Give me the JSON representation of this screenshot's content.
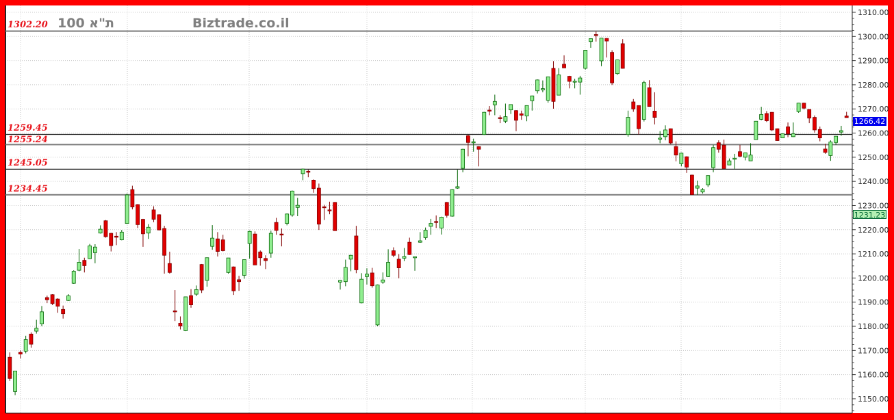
{
  "header": {
    "index_name": "100 ת\"א",
    "watermark": "Biztrade.co.il"
  },
  "colors": {
    "frame": "#ff0000",
    "up_fill": "#90ee90",
    "up_stroke": "#006400",
    "down_fill": "#e00000",
    "down_stroke": "#800000",
    "level_label": "#e8161e",
    "last_price_badge": "#0000ee",
    "secondary_badge": "#b4f0b4"
  },
  "chart_data": {
    "type": "candlestick",
    "ylim": [
      1145,
      1312
    ],
    "y_ticks": [
      "1310.00",
      "1300.00",
      "1290.00",
      "1280.00",
      "1270.00",
      "1260.00",
      "1250.00",
      "1240.00",
      "1230.00",
      "1220.00",
      "1210.00",
      "1200.00",
      "1190.00",
      "1180.00",
      "1170.00",
      "1160.00",
      "1150.00"
    ],
    "y_axis_position": "right",
    "grid": true,
    "levels": [
      {
        "label": "1302.20",
        "value": 1302.2
      },
      {
        "label": "1259.45",
        "value": 1259.45
      },
      {
        "label": "1255.24",
        "value": 1255.24
      },
      {
        "label": "1245.05",
        "value": 1245.05
      },
      {
        "label": "1234.45",
        "value": 1234.45
      }
    ],
    "last_price": "1266.42",
    "secondary_marker": {
      "label": "1231.23",
      "value": 1231.23
    },
    "ohlc": [
      [
        1167.2,
        1169.2,
        1157.4,
        1158.4
      ],
      [
        1153,
        1161.5,
        1151.5,
        1161.5
      ],
      [
        1169.2,
        1170,
        1166.7,
        1168.5
      ],
      [
        1169.7,
        1176.1,
        1168.8,
        1174.5
      ],
      [
        1176.8,
        1177.5,
        1171.1,
        1172.6
      ],
      [
        1178.0,
        1182.7,
        1177,
        1179.2
      ],
      [
        1181.0,
        1188.4,
        1180,
        1186.0
      ],
      [
        1191.9,
        1192.7,
        1189.6,
        1191.0
      ],
      [
        1193.1,
        1193.3,
        1188.8,
        1189.4
      ],
      [
        1191.3,
        1191.6,
        1185.6,
        1188.3
      ],
      [
        1187,
        1188.6,
        1183.2,
        1185.2
      ],
      [
        1190.7,
        1193.3,
        1190.5,
        1192.6
      ],
      [
        1197.8,
        1203.2,
        1197.6,
        1202.8
      ],
      [
        1203.2,
        1212,
        1202.8,
        1206.5
      ],
      [
        1207.3,
        1208.4,
        1202.3,
        1205.1
      ],
      [
        1208,
        1214.1,
        1207.8,
        1213.3
      ],
      [
        1210.5,
        1214,
        1206.1,
        1212.8
      ],
      [
        1218.6,
        1221.8,
        1218.4,
        1220.2
      ],
      [
        1223.7,
        1224,
        1216.7,
        1217.1
      ],
      [
        1218.5,
        1218.7,
        1211,
        1213.4
      ],
      [
        1217.3,
        1219,
        1213.6,
        1216.9
      ],
      [
        1215.8,
        1219.9,
        1215.6,
        1219
      ],
      [
        1222.6,
        1235,
        1222.4,
        1234.4
      ],
      [
        1236.6,
        1238.2,
        1228.4,
        1229.4
      ],
      [
        1230.4,
        1230.6,
        1220.7,
        1222.1
      ],
      [
        1224.3,
        1224.5,
        1212.9,
        1218.3
      ],
      [
        1218.6,
        1222.3,
        1216.2,
        1221
      ],
      [
        1228.2,
        1229.7,
        1223.1,
        1224.3
      ],
      [
        1226.2,
        1226.4,
        1219.7,
        1219.9
      ],
      [
        1220.5,
        1221.6,
        1201.8,
        1209.4
      ],
      [
        1206,
        1210.9,
        1201.8,
        1202.3
      ],
      [
        1186.4,
        1195,
        1182.2,
        1186.2
      ],
      [
        1181.3,
        1184.1,
        1178.7,
        1180.1
      ],
      [
        1178.2,
        1192.2,
        1178.0,
        1192.2
      ],
      [
        1192.7,
        1195.4,
        1187.7,
        1188.9
      ],
      [
        1193.3,
        1196.9,
        1192.5,
        1195.2
      ],
      [
        1205.6,
        1205.8,
        1193.8,
        1195.0
      ],
      [
        1199,
        1208.4,
        1196.4,
        1208.4
      ],
      [
        1213.1,
        1221.9,
        1211.7,
        1216.5
      ],
      [
        1216.2,
        1219,
        1208.9,
        1211
      ],
      [
        1215.8,
        1217.9,
        1211,
        1211.3
      ],
      [
        1202.3,
        1208.3,
        1201.8,
        1208.3
      ],
      [
        1204.6,
        1204.8,
        1193,
        1194.7
      ],
      [
        1199.3,
        1200.9,
        1194.7,
        1198.5
      ],
      [
        1201.1,
        1207.6,
        1199.7,
        1207.6
      ],
      [
        1214.3,
        1219.6,
        1208,
        1219.3
      ],
      [
        1218.2,
        1219.3,
        1205.4,
        1205.4
      ],
      [
        1210.8,
        1211.4,
        1205.1,
        1208.4
      ],
      [
        1208.1,
        1209.4,
        1203.7,
        1207.2
      ],
      [
        1210.3,
        1219.6,
        1208.4,
        1218.5
      ],
      [
        1223,
        1224.9,
        1217.9,
        1219.7
      ],
      [
        1218.2,
        1220.5,
        1213.1,
        1217.9
      ],
      [
        1222.6,
        1226.7,
        1221.8,
        1226.5
      ],
      [
        1226.1,
        1236.2,
        1225.4,
        1236
      ],
      [
        1229.2,
        1233.2,
        1225.6,
        1230.1
      ],
      [
        1243.2,
        1245.3,
        1240.5,
        1245.1
      ],
      [
        1244.2,
        1244.8,
        1241.7,
        1244.0
      ],
      [
        1240.5,
        1240.8,
        1235.3,
        1237
      ],
      [
        1237.2,
        1239.1,
        1219.9,
        1222.3
      ],
      [
        1229.5,
        1230.3,
        1224,
        1229.3
      ],
      [
        1228.2,
        1231.6,
        1226.4,
        1228.0
      ],
      [
        1231.3,
        1231.5,
        1219.6,
        1219.6
      ],
      [
        1198.3,
        1199.2,
        1195.2,
        1199
      ],
      [
        1198.5,
        1207.6,
        1196.6,
        1204.4
      ],
      [
        1207.8,
        1209.6,
        1202.8,
        1209.4
      ],
      [
        1217.4,
        1221.6,
        1202,
        1203.4
      ],
      [
        1189.7,
        1202,
        1189.5,
        1199.5
      ],
      [
        1200.6,
        1204,
        1197.3,
        1201.6
      ],
      [
        1202.1,
        1204.2,
        1196,
        1196.8
      ],
      [
        1180.6,
        1197.3,
        1180.1,
        1197.1
      ],
      [
        1198.3,
        1202.3,
        1197.6,
        1199.2
      ],
      [
        1200.6,
        1211.9,
        1200.4,
        1206.5
      ],
      [
        1211.3,
        1212.7,
        1208.6,
        1209.4
      ],
      [
        1207.8,
        1209.9,
        1199.9,
        1204.2
      ],
      [
        1208.2,
        1212.4,
        1207,
        1208.9
      ],
      [
        1214.8,
        1216.7,
        1209.5,
        1209.7
      ],
      [
        1208.6,
        1208.9,
        1203,
        1208.8
      ],
      [
        1214.8,
        1219,
        1214.6,
        1215.4
      ],
      [
        1216.7,
        1220.9,
        1215.8,
        1219.8
      ],
      [
        1221.4,
        1224.5,
        1217.9,
        1222.6
      ],
      [
        1223.4,
        1225.9,
        1220.7,
        1223.0
      ],
      [
        1220.7,
        1225.4,
        1218,
        1225.2
      ],
      [
        1231.3,
        1231.5,
        1225,
        1225.9
      ],
      [
        1225.6,
        1236.8,
        1225.4,
        1236.6
      ],
      [
        1237.2,
        1244.8,
        1236.9,
        1237.8
      ],
      [
        1245.4,
        1253.5,
        1243.8,
        1253.3
      ],
      [
        1258.9,
        1259.4,
        1250.4,
        1256.1
      ],
      [
        1256.2,
        1257.7,
        1252.3,
        1256.4
      ],
      [
        1254.4,
        1254.6,
        1246.2,
        1253.3
      ],
      [
        1259.4,
        1268.8,
        1259.2,
        1268.6
      ],
      [
        1269.5,
        1271.2,
        1267.4,
        1269.1
      ],
      [
        1271.7,
        1275.9,
        1267.4,
        1273.1
      ],
      [
        1266.4,
        1267.4,
        1264.1,
        1266.0
      ],
      [
        1264.9,
        1272.2,
        1264.1,
        1266.8
      ],
      [
        1269.6,
        1271.9,
        1267.9,
        1271.8
      ],
      [
        1269.3,
        1269.5,
        1260.8,
        1265.3
      ],
      [
        1268,
        1269.3,
        1265.5,
        1267.4
      ],
      [
        1267.1,
        1271.5,
        1264.9,
        1271.4
      ],
      [
        1273.4,
        1275.5,
        1269.3,
        1275.4
      ],
      [
        1277.5,
        1282.2,
        1276.4,
        1282
      ],
      [
        1277.9,
        1281.8,
        1276.9,
        1278.4
      ],
      [
        1273.6,
        1283.4,
        1272.6,
        1283.3
      ],
      [
        1286.8,
        1289.8,
        1270.1,
        1273.1
      ],
      [
        1275.7,
        1286.9,
        1275.6,
        1284.1
      ],
      [
        1288.5,
        1292.2,
        1286.9,
        1287
      ],
      [
        1283.5,
        1283.7,
        1278.5,
        1281.4
      ],
      [
        1281.3,
        1282.5,
        1278.5,
        1281.5
      ],
      [
        1281.1,
        1283.7,
        1275.9,
        1282.8
      ],
      [
        1286.8,
        1294.4,
        1286.3,
        1294.3
      ],
      [
        1297.9,
        1299.2,
        1295.3,
        1299.1
      ],
      [
        1300.8,
        1302.1,
        1297.9,
        1300.6
      ],
      [
        1289.9,
        1299.4,
        1287.7,
        1299.3
      ],
      [
        1299.2,
        1299.3,
        1291.3,
        1298.1
      ],
      [
        1293.4,
        1294.3,
        1279.9,
        1280.8
      ],
      [
        1284.6,
        1290.4,
        1284.1,
        1290.3
      ],
      [
        1297,
        1298.9,
        1286.7,
        1286.8
      ],
      [
        1259.4,
        1269.3,
        1258.5,
        1266.5
      ],
      [
        1272.9,
        1274.1,
        1268.8,
        1270
      ],
      [
        1271.4,
        1271.5,
        1259.4,
        1261.8
      ],
      [
        1265.7,
        1281.7,
        1264.8,
        1280.9
      ],
      [
        1278.8,
        1281.9,
        1271,
        1271
      ],
      [
        1269.1,
        1276.9,
        1263.6,
        1266.5
      ],
      [
        1257.7,
        1260.8,
        1255.8,
        1257.9
      ],
      [
        1258.5,
        1263.2,
        1257,
        1261.3
      ],
      [
        1261.8,
        1261.9,
        1255.4,
        1255.9
      ],
      [
        1254.4,
        1256.6,
        1248.3,
        1250.9
      ],
      [
        1247.3,
        1251.9,
        1246.2,
        1251.7
      ],
      [
        1250.2,
        1250.4,
        1243.5,
        1245.9
      ],
      [
        1242.6,
        1242.8,
        1234.4,
        1234.5
      ],
      [
        1237.2,
        1240.3,
        1234.4,
        1238.1
      ],
      [
        1235.6,
        1237.2,
        1235,
        1236.6
      ],
      [
        1238.6,
        1242.5,
        1237.7,
        1242.4
      ],
      [
        1245.7,
        1255.1,
        1243.8,
        1254
      ],
      [
        1256,
        1257,
        1251.9,
        1253.3
      ],
      [
        1255,
        1257.3,
        1245.3,
        1245.3
      ],
      [
        1246.8,
        1249.5,
        1246.7,
        1248.5
      ],
      [
        1249.4,
        1251.4,
        1245.2,
        1249.6
      ],
      [
        1252.3,
        1255.1,
        1250,
        1250.4
      ],
      [
        1250,
        1251.9,
        1248.7,
        1251.8
      ],
      [
        1248.5,
        1255.8,
        1248.4,
        1250.9
      ],
      [
        1257.3,
        1265,
        1257.2,
        1264.9
      ],
      [
        1265.7,
        1270.9,
        1265.3,
        1267.7
      ],
      [
        1268.1,
        1269.1,
        1264.6,
        1265.1
      ],
      [
        1268.6,
        1268.7,
        1260.8,
        1261.3
      ],
      [
        1261.8,
        1261.9,
        1256.8,
        1256.9
      ],
      [
        1258,
        1259.8,
        1257.9,
        1259.7
      ],
      [
        1262.6,
        1264.4,
        1258.3,
        1259.7
      ],
      [
        1258.5,
        1264.4,
        1258.4,
        1259.7
      ],
      [
        1268.9,
        1272.5,
        1268.4,
        1272.4
      ],
      [
        1272.4,
        1272.6,
        1269.8,
        1270.3
      ],
      [
        1269.8,
        1269.9,
        1264.1,
        1266.2
      ],
      [
        1266.5,
        1267.3,
        1260.2,
        1261.3
      ],
      [
        1261.5,
        1262.7,
        1256.6,
        1258
      ],
      [
        1253.4,
        1255.6,
        1251.4,
        1252
      ],
      [
        1250.7,
        1257,
        1248.5,
        1256.3
      ],
      [
        1256.1,
        1258.8,
        1255.1,
        1258.7
      ],
      [
        1260.4,
        1263,
        1258.9,
        1261
      ],
      [
        1267.1,
        1268.8,
        1266.4,
        1266.42
      ]
    ]
  }
}
